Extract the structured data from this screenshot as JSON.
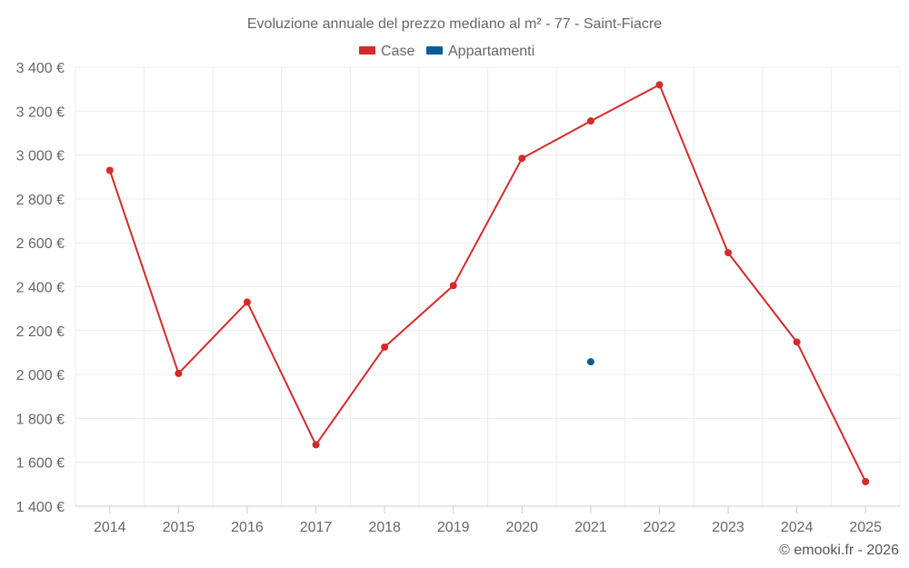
{
  "chart_data": {
    "type": "line",
    "title": "Evoluzione annuale del prezzo mediano al m² - 77 - Saint-Fiacre",
    "categories": [
      "2014",
      "2015",
      "2016",
      "2017",
      "2018",
      "2019",
      "2020",
      "2021",
      "2022",
      "2023",
      "2024",
      "2025"
    ],
    "series": [
      {
        "name": "Case",
        "color": "#d42a2a",
        "values": [
          2930,
          2005,
          2330,
          1680,
          2125,
          2405,
          2985,
          3155,
          3320,
          2555,
          2148,
          1512
        ]
      },
      {
        "name": "Appartamenti",
        "color": "#0a5c99",
        "values": [
          null,
          null,
          null,
          null,
          null,
          null,
          null,
          2058,
          null,
          null,
          null,
          null
        ]
      }
    ],
    "ylim": [
      1400,
      3400
    ],
    "yticks": [
      1400,
      1600,
      1800,
      2000,
      2200,
      2400,
      2600,
      2800,
      3000,
      3200,
      3400
    ],
    "ytick_labels": [
      "1 400 €",
      "1 600 €",
      "1 800 €",
      "2 000 €",
      "2 200 €",
      "2 400 €",
      "2 600 €",
      "2 800 €",
      "3 000 €",
      "3 200 €",
      "3 400 €"
    ],
    "legend_position": "top-center",
    "grid": true
  },
  "credit": "© emooki.fr - 2026"
}
